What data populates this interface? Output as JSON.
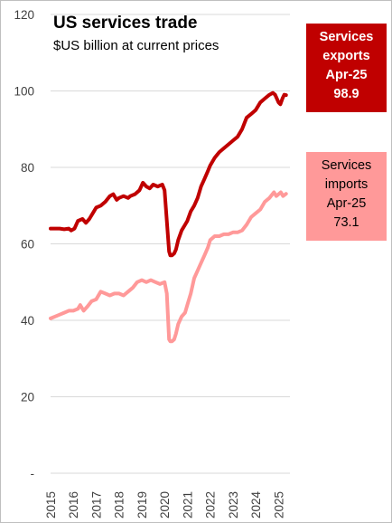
{
  "chart_data": {
    "type": "line",
    "title": "US services trade",
    "subtitle": "$US billion at current prices",
    "ylim": [
      0,
      120
    ],
    "yticks": [
      0,
      20,
      40,
      60,
      80,
      100,
      120
    ],
    "ytick_labels": [
      "-",
      "20",
      "40",
      "60",
      "80",
      "100",
      "120"
    ],
    "xlim": [
      2015.0,
      2025.5
    ],
    "xticks": [
      "2015",
      "2016",
      "2017",
      "2018",
      "2019",
      "2020",
      "2021",
      "2022",
      "2023",
      "2024",
      "2025"
    ],
    "grid": "horizontal",
    "legend": "none",
    "series": [
      {
        "color": "#c00000",
        "x": [
          2015.0,
          2015.2,
          2015.4,
          2015.6,
          2015.8,
          2015.9,
          2016.05,
          2016.2,
          2016.4,
          2016.55,
          2016.7,
          2016.9,
          2017.0,
          2017.2,
          2017.4,
          2017.6,
          2017.75,
          2017.9,
          2018.0,
          2018.2,
          2018.4,
          2018.5,
          2018.7,
          2018.9,
          2019.05,
          2019.2,
          2019.35,
          2019.5,
          2019.7,
          2019.9,
          2020.0,
          2020.1,
          2020.2,
          2020.25,
          2020.33,
          2020.42,
          2020.5,
          2020.6,
          2020.75,
          2020.9,
          2021.0,
          2021.15,
          2021.3,
          2021.45,
          2021.6,
          2021.75,
          2021.9,
          2022.0,
          2022.2,
          2022.4,
          2022.6,
          2022.8,
          2023.0,
          2023.2,
          2023.4,
          2023.6,
          2023.8,
          2024.0,
          2024.2,
          2024.4,
          2024.6,
          2024.75,
          2024.85,
          2025.0,
          2025.08,
          2025.17,
          2025.25,
          2025.33
        ],
        "y": [
          64,
          64,
          64,
          63.8,
          64,
          63.5,
          64,
          66,
          66.5,
          65.5,
          66.5,
          68.5,
          69.5,
          70,
          71,
          72.5,
          73,
          71.5,
          72,
          72.5,
          72,
          72.5,
          73,
          74,
          76,
          75,
          74.5,
          75.5,
          75,
          75.5,
          74,
          66,
          58,
          57,
          57,
          57.5,
          58.5,
          61,
          63.5,
          65,
          66,
          68.5,
          70,
          72,
          75,
          77,
          79,
          80.5,
          82.5,
          84,
          85,
          86,
          87,
          88,
          90,
          93,
          94,
          95,
          97,
          98,
          99,
          99.5,
          99,
          97,
          96.5,
          98,
          99,
          98.9
        ]
      },
      {
        "color": "#ff9999",
        "x": [
          2015.0,
          2015.2,
          2015.4,
          2015.6,
          2015.8,
          2016.0,
          2016.2,
          2016.3,
          2016.45,
          2016.6,
          2016.8,
          2017.0,
          2017.2,
          2017.4,
          2017.6,
          2017.8,
          2018.0,
          2018.2,
          2018.4,
          2018.6,
          2018.8,
          2019.0,
          2019.2,
          2019.4,
          2019.6,
          2019.8,
          2020.0,
          2020.1,
          2020.2,
          2020.25,
          2020.33,
          2020.42,
          2020.5,
          2020.6,
          2020.75,
          2020.9,
          2021.0,
          2021.15,
          2021.3,
          2021.45,
          2021.6,
          2021.75,
          2021.9,
          2022.0,
          2022.2,
          2022.4,
          2022.6,
          2022.8,
          2023.0,
          2023.2,
          2023.4,
          2023.6,
          2023.8,
          2024.0,
          2024.2,
          2024.4,
          2024.6,
          2024.8,
          2024.9,
          2025.0,
          2025.1,
          2025.2,
          2025.33
        ],
        "y": [
          40.5,
          41,
          41.5,
          42,
          42.5,
          42.5,
          43,
          44,
          42.5,
          43.5,
          45,
          45.5,
          47.5,
          47,
          46.5,
          47,
          47,
          46.5,
          47.5,
          48.5,
          50,
          50.5,
          50,
          50.5,
          50,
          49.5,
          50,
          47,
          35,
          34.5,
          34.5,
          35,
          36.5,
          39,
          41,
          42,
          44,
          47,
          51,
          53,
          55,
          57,
          59,
          61,
          62,
          62,
          62.5,
          62.5,
          63,
          63,
          63.5,
          65,
          67,
          68,
          69,
          71,
          72,
          73.5,
          72.5,
          73,
          73.5,
          72.5,
          73.1
        ]
      }
    ],
    "annotations": [
      {
        "lines": [
          "Services",
          "exports",
          "Apr-25",
          "98.9"
        ]
      },
      {
        "lines": [
          "Services",
          "imports",
          "Apr-25",
          "73.1"
        ]
      }
    ]
  }
}
